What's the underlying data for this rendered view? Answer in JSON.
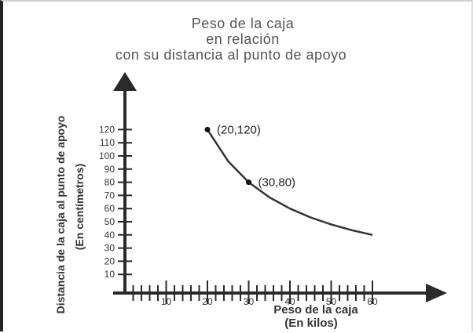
{
  "chart_data": {
    "type": "line",
    "title_lines": [
      "Peso de la caja",
      "en relación",
      "con su distancia al punto de apoyo"
    ],
    "xlabel_lines": [
      "Peso de la caja",
      "(En kilos)"
    ],
    "ylabel_lines": [
      "Distancia de la caja al punto de apoyo",
      "(En centímetros)"
    ],
    "xticks": [
      10,
      20,
      30,
      40,
      50,
      60
    ],
    "yticks": [
      10,
      20,
      30,
      40,
      50,
      60,
      70,
      80,
      90,
      100,
      110,
      120
    ],
    "xlim": [
      0,
      60
    ],
    "ylim": [
      0,
      120
    ],
    "series": [
      {
        "relation": "x * y = 2400",
        "x": [
          20,
          25,
          30,
          35,
          40,
          45,
          50,
          55,
          60
        ],
        "y": [
          120,
          96,
          80,
          68.6,
          60,
          53.3,
          48,
          43.6,
          40
        ]
      }
    ],
    "annotations": [
      {
        "label": "(20,120)",
        "x": 20,
        "y": 120
      },
      {
        "label": "(30,80)",
        "x": 30,
        "y": 80
      }
    ],
    "grid": false,
    "line_color": "#333333"
  }
}
